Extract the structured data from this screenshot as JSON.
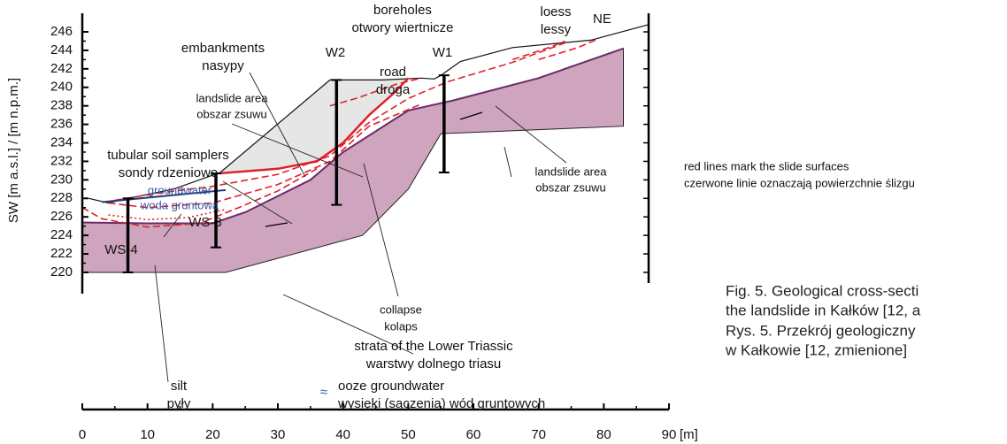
{
  "axes": {
    "y_label": "SW [m a.s.l.] / [m n.p.m.]",
    "x_unit": "[m]",
    "x_ticks": [
      0,
      10,
      20,
      30,
      40,
      50,
      60,
      70,
      80,
      90
    ],
    "y_ticks": [
      220,
      222,
      224,
      226,
      228,
      230,
      232,
      234,
      236,
      238,
      240,
      242,
      244,
      246
    ]
  },
  "labels": {
    "boreholes": [
      "boreholes",
      "otwory wiertnicze"
    ],
    "loess": [
      "loess",
      "lessy"
    ],
    "direction": "NE",
    "embankments": [
      "embankments",
      "nasypy"
    ],
    "borehole_w2": "W2",
    "borehole_w1": "W1",
    "road": [
      "road",
      "droga"
    ],
    "landslide_left": [
      "landslide area",
      "obszar zsuwu"
    ],
    "samplers": [
      "tubular soil samplers",
      "sondy rdzeniowe"
    ],
    "groundwater": [
      "groundwater",
      "woda gruntowa"
    ],
    "sampler_ws3": "WS-3",
    "sampler_ws4": "WS-4",
    "collapse": [
      "collapse",
      "kolaps"
    ],
    "landslide_right": [
      "landslide area",
      "obszar zsuwu"
    ],
    "strata": [
      "strata of the Lower Triassic",
      "warstwy dolnego triasu"
    ],
    "silt": [
      "silt",
      "pyły"
    ],
    "ooze": [
      "ooze groundwater",
      "wysięki (sączenia) wód gruntowych"
    ],
    "ooze_symbol": "≈",
    "legend_note": [
      "red lines mark the slide surfaces",
      "czerwone linie oznaczają powierzchnie ślizgu"
    ]
  },
  "caption": [
    "Fig. 5. Geological cross-secti",
    "the landslide in Kałków [12, a",
    "Rys. 5. Przekrój geologiczny",
    "w Kałkowie [12, zmienione]"
  ]
}
